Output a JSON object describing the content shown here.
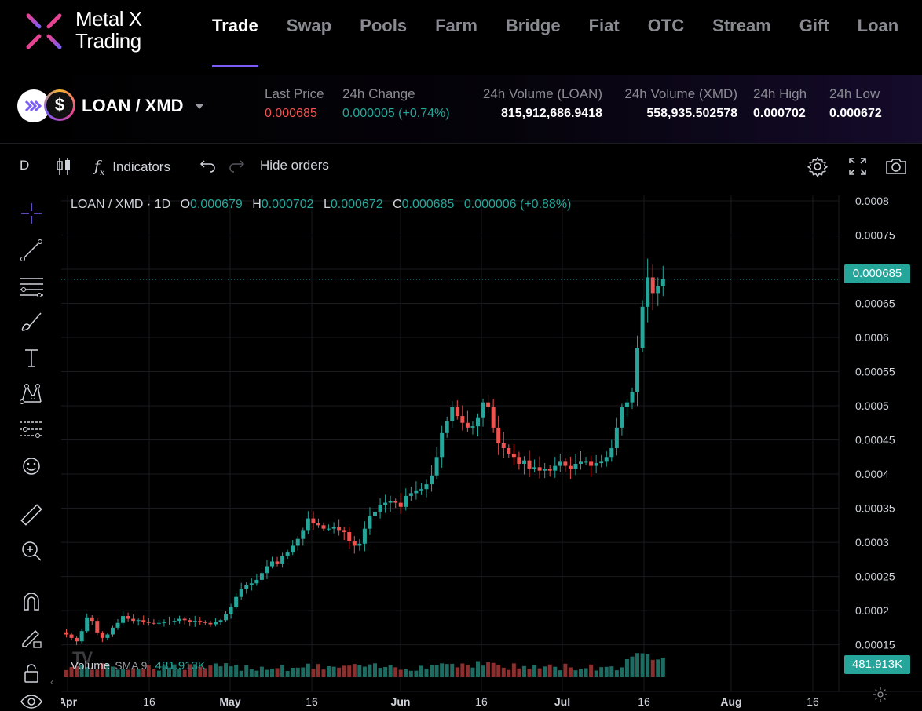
{
  "brand": {
    "line1": "Metal X",
    "line2": "Trading"
  },
  "nav": [
    "Trade",
    "Swap",
    "Pools",
    "Farm",
    "Bridge",
    "Fiat",
    "OTC",
    "Stream",
    "Gift",
    "Loan"
  ],
  "pair": {
    "name": "LOAN / XMD",
    "coin2_symbol": "$"
  },
  "stats": {
    "last_price_label": "Last Price",
    "last_price": "0.000685",
    "change_label": "24h Change",
    "change": "0.000005 (+0.74%)",
    "vol_loan_label": "24h Volume (LOAN)",
    "vol_loan": "815,912,686.9418",
    "vol_xmd_label": "24h Volume (XMD)",
    "vol_xmd": "558,935.502578",
    "high_label": "24h High",
    "high": "0.000702",
    "low_label": "24h Low",
    "low": "0.000672"
  },
  "toolbar": {
    "interval": "D",
    "indicators": "Indicators",
    "fx": "f",
    "fx_sub": "x",
    "hide_orders": "Hide orders"
  },
  "legend": {
    "symbol": "LOAN / XMD · 1D",
    "o_label": "O",
    "o": "0.000679",
    "h_label": "H",
    "h": "0.000702",
    "l_label": "L",
    "l": "0.000672",
    "c_label": "C",
    "c": "0.000685",
    "change": "0.000006 (+0.88%)"
  },
  "volume_legend": {
    "label": "Volume",
    "sma": "SMA 9",
    "value": "481.913K"
  },
  "tv_logo": "TV",
  "price_tag": "0.000685",
  "volume_tag": "481.913K",
  "colors": {
    "up": "#26a69a",
    "down": "#ef5350",
    "accent": "#7b5cf5"
  },
  "chart_data": {
    "type": "candlestick",
    "y_ticks": [
      "0.0008",
      "0.00075",
      "0.0007",
      "0.00065",
      "0.0006",
      "0.00055",
      "0.0005",
      "0.00045",
      "0.0004",
      "0.00035",
      "0.0003",
      "0.00025",
      "0.0002",
      "0.00015"
    ],
    "ylim": [
      0.00013,
      0.000808
    ],
    "x_ticks": [
      "Apr",
      "16",
      "May",
      "16",
      "Jun",
      "16",
      "Jul",
      "16",
      "Aug",
      "16"
    ],
    "last_price": 0.000685,
    "close_series": [
      0.000165,
      0.00016,
      0.000155,
      0.00017,
      0.00019,
      0.000185,
      0.000168,
      0.00016,
      0.000165,
      0.000175,
      0.000182,
      0.000192,
      0.000188,
      0.000185,
      0.000186,
      0.000184,
      0.000182,
      0.000181,
      0.000182,
      0.000183,
      0.000184,
      0.000185,
      0.000188,
      0.000186,
      0.000183,
      0.000185,
      0.000184,
      0.000182,
      0.00018,
      0.000183,
      0.000186,
      0.000195,
      0.000205,
      0.00022,
      0.000232,
      0.000238,
      0.00024,
      0.000245,
      0.000255,
      0.000265,
      0.000272,
      0.000268,
      0.00028,
      0.000285,
      0.000295,
      0.000305,
      0.000318,
      0.000335,
      0.000328,
      0.000325,
      0.00032,
      0.00032,
      0.000322,
      0.000318,
      0.000315,
      0.000302,
      0.000295,
      0.000298,
      0.00032,
      0.000338,
      0.000345,
      0.000355,
      0.000358,
      0.00036,
      0.000358,
      0.000352,
      0.000368,
      0.000372,
      0.000375,
      0.000378,
      0.000385,
      0.000398,
      0.000425,
      0.00046,
      0.000478,
      0.000498,
      0.000485,
      0.000475,
      0.000468,
      0.00047,
      0.000482,
      0.000505,
      0.000498,
      0.000468,
      0.000445,
      0.000438,
      0.00043,
      0.000425,
      0.000415,
      0.00042,
      0.000408,
      0.00041,
      0.000405,
      0.000408,
      0.000405,
      0.000412,
      0.000418,
      0.000412,
      0.000408,
      0.000415,
      0.000418,
      0.000418,
      0.000412,
      0.000416,
      0.000418,
      0.000425,
      0.000438,
      0.000468,
      0.000498,
      0.000505,
      0.00052,
      0.000585,
      0.000645,
      0.000688,
      0.000665,
      0.000675,
      0.000685
    ]
  }
}
